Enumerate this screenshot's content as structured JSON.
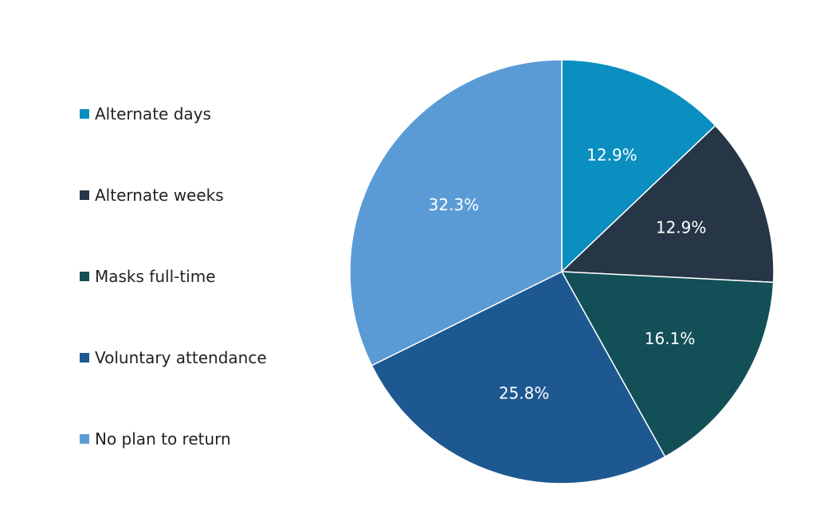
{
  "chart_data": {
    "type": "pie",
    "title": "",
    "start_angle_deg": 0,
    "direction": "clockwise",
    "legend_position": "left",
    "categories": [
      "Alternate days",
      "Alternate weeks",
      "Masks full-time",
      "Voluntary attendance",
      "No plan to return"
    ],
    "values": [
      12.9,
      12.9,
      16.1,
      25.8,
      32.3
    ],
    "value_labels": [
      "12.9%",
      "12.9%",
      "16.1%",
      "25.8%",
      "32.3%"
    ],
    "colors": [
      "#0a8fc0",
      "#263646",
      "#124f56",
      "#1d5890",
      "#5b9bd5"
    ]
  }
}
